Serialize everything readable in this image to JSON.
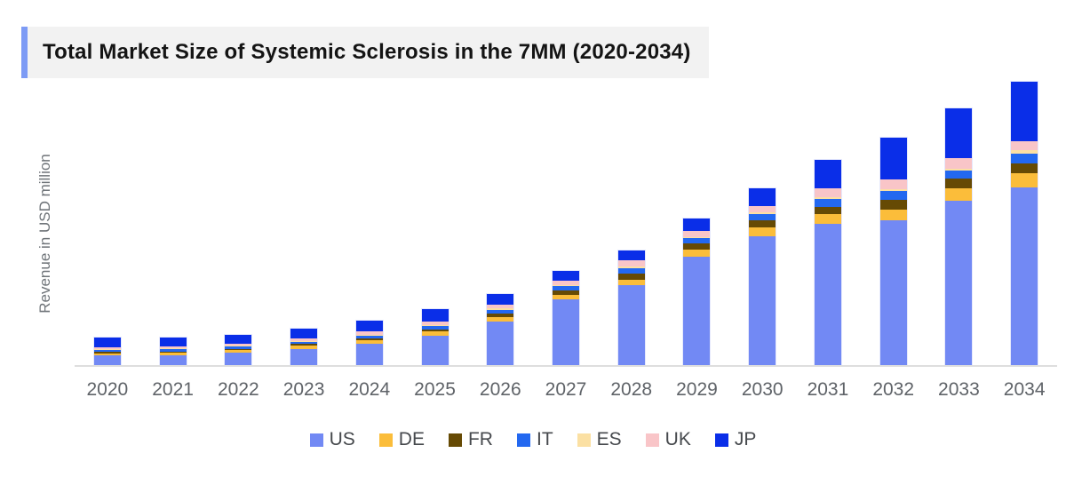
{
  "title": {
    "text": "Total Market Size of Systemic Sclerosis in the 7MM  (2020-2034)"
  },
  "accent_color": "#7d9bf5",
  "title_bg_color": "#f2f2f2",
  "axis": {
    "ylabel": "Revenue in USD million",
    "baseline_color": "#dedede"
  },
  "chart_data": {
    "type": "bar",
    "stacked": true,
    "title": "Total Market Size of Systemic Sclerosis in the 7MM  (2020-2034)",
    "xlabel": "",
    "ylabel": "Revenue in USD million",
    "grid": false,
    "legend_position": "bottom",
    "ylim": [
      0,
      330
    ],
    "y_axis_tick_labels_shown": false,
    "categories": [
      "2020",
      "2021",
      "2022",
      "2023",
      "2024",
      "2025",
      "2026",
      "2027",
      "2028",
      "2029",
      "2030",
      "2031",
      "2032",
      "2033",
      "2034"
    ],
    "series": [
      {
        "name": "US",
        "color": "#7289f4",
        "values": [
          12,
          12.5,
          15,
          19.5,
          25,
          34.5,
          50.5,
          75.5,
          91,
          123,
          146,
          160,
          164,
          186,
          201
        ]
      },
      {
        "name": "DE",
        "color": "#fbbd3a",
        "values": [
          2,
          2.1,
          2.7,
          3.4,
          4,
          4.4,
          5,
          5,
          6.5,
          8,
          10,
          10.7,
          11.6,
          14.3,
          16
        ]
      },
      {
        "name": "FR",
        "color": "#664a04",
        "values": [
          1.8,
          1.9,
          1.8,
          2,
          2.3,
          2.6,
          3.6,
          4.4,
          6.5,
          6.7,
          7.7,
          8.3,
          11.7,
          11,
          11
        ]
      },
      {
        "name": "IT",
        "color": "#2368f0",
        "values": [
          2.4,
          2.4,
          2.4,
          2.3,
          2.7,
          3.4,
          4.4,
          5,
          6,
          6.6,
          7.6,
          9.4,
          10,
          9,
          11
        ]
      },
      {
        "name": "ES",
        "color": "#fbe0a3",
        "values": [
          0.7,
          0.7,
          0.8,
          0.8,
          0.9,
          1,
          1.5,
          1.2,
          2.2,
          1,
          1.7,
          1.6,
          1.7,
          1.7,
          3.7
        ]
      },
      {
        "name": "UK",
        "color": "#f9c5c8",
        "values": [
          2.2,
          2.3,
          2.7,
          3.3,
          4,
          4,
          4.5,
          4.7,
          6.5,
          6.7,
          7.3,
          10,
          11,
          11.7,
          10.3
        ]
      },
      {
        "name": "JP",
        "color": "#0a2ee8",
        "values": [
          10.6,
          10.3,
          9.3,
          10.7,
          12,
          14.3,
          11.6,
          11,
          11.6,
          14,
          20,
          32.4,
          47.3,
          56.6,
          67.3
        ]
      }
    ]
  }
}
